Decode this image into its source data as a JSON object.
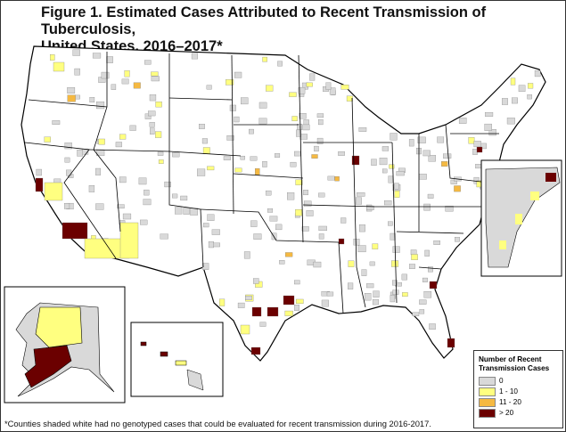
{
  "title": {
    "line1": "Figure 1.  Estimated Cases Attributed to Recent Transmission of Tuberculosis,",
    "line2": "United States, 2016–2017*"
  },
  "legend": {
    "title_line1": "Number of Recent",
    "title_line2": "Transmission Cases",
    "items": [
      {
        "label": "0",
        "color": "#d9d9d9"
      },
      {
        "label": "1 - 10",
        "color": "#ffff80"
      },
      {
        "label": "11 - 20",
        "color": "#f5b942"
      },
      {
        "label": "> 20",
        "color": "#6b0000"
      }
    ]
  },
  "footnote": "*Counties shaded white had no genotyped cases that could be evaluated for recent transmission during 2016-2017."
}
